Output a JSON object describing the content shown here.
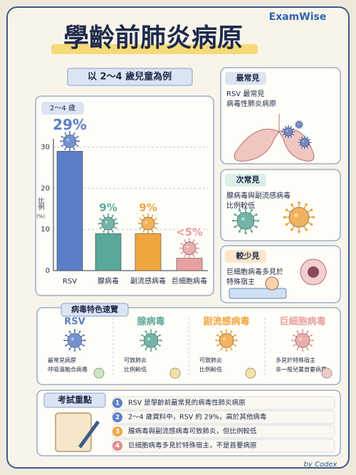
{
  "brand": "ExamWise",
  "title": "學齡前肺炎病原",
  "subtitle": "以 2～4 歲兒童為例",
  "chart_data": {
    "type": "bar",
    "tag": "2～4 歲",
    "y_label": "比例",
    "y_unit": "(%)",
    "categories": [
      "RSV",
      "腺病毒",
      "副流感病毒",
      "巨細胞病毒"
    ],
    "values": [
      29,
      9,
      9,
      3
    ],
    "value_labels": [
      "29%",
      "9%",
      "9%",
      "<5%"
    ],
    "colors": [
      "#5b7fc7",
      "#5aa89a",
      "#f0a640",
      "#e8a0a0"
    ],
    "ylim": [
      0,
      32
    ],
    "yticks": [
      0,
      10,
      20,
      30
    ],
    "grid": true
  },
  "cards": [
    {
      "tag": "最常見",
      "lines": [
        "RSV 最常見",
        "病毒性肺炎病原"
      ]
    },
    {
      "tag": "次常見",
      "lines": [
        "腺病毒與副流感病毒",
        "比例較低"
      ]
    },
    {
      "tag": "較少見",
      "lines": [
        "巨細胞病毒多見於",
        "特殊宿主"
      ]
    }
  ],
  "summary": {
    "title": "病毒特色速覽",
    "columns": [
      {
        "name": "RSV",
        "bullets": [
          "最常見病原",
          "呼吸道融合病毒"
        ]
      },
      {
        "name": "腺病毒",
        "bullets": [
          "可致肺炎",
          "比例較低"
        ]
      },
      {
        "name": "副流感病毒",
        "bullets": [
          "可致肺炎",
          "比例較低"
        ]
      },
      {
        "name": "巨細胞病毒",
        "bullets": [
          "多見於特殊宿主",
          "非一般兒童首要病原"
        ]
      }
    ]
  },
  "exam": {
    "title": "考試重點",
    "items": [
      {
        "num": "1",
        "text": "RSV 是學齡前最常見的病毒性肺炎病原"
      },
      {
        "num": "2",
        "text": "2～4 歲資料中，RSV 約 29%，高於其他病毒"
      },
      {
        "num": "3",
        "text": "腺病毒與副流感病毒可致肺炎，但比例較低"
      },
      {
        "num": "4",
        "text": "巨細胞病毒多見於特殊宿主，不是首要病原"
      }
    ]
  },
  "signature": "by Codex"
}
